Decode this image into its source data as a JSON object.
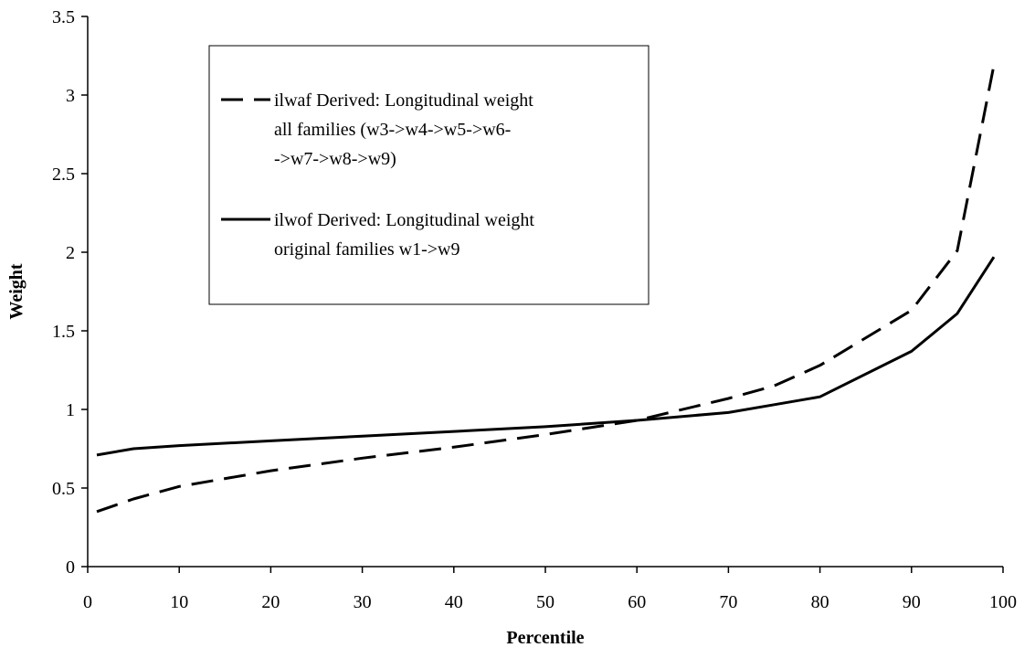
{
  "chart_data": {
    "type": "line",
    "xlabel": "Percentile",
    "ylabel": "Weight",
    "xlim": [
      0,
      100
    ],
    "ylim": [
      0,
      3.5
    ],
    "x_ticks": [
      0,
      10,
      20,
      30,
      40,
      50,
      60,
      70,
      80,
      90,
      100
    ],
    "y_ticks": [
      0,
      0.5,
      1,
      1.5,
      2,
      2.5,
      3,
      3.5
    ],
    "x_tick_labels": [
      "0",
      "10",
      "20",
      "30",
      "40",
      "50",
      "60",
      "70",
      "80",
      "90",
      "100"
    ],
    "y_tick_labels": [
      "0",
      "0.5",
      "1",
      "1.5",
      "2",
      "2.5",
      "3",
      "3.5"
    ],
    "grid": false,
    "legend_position": "top-left",
    "series": [
      {
        "name": "ilwaf  Derived: Longitudinal weight all families (w3->w4->w5->w6->w7->w8->w9)",
        "legend_lines": [
          "ilwaf  Derived: Longitudinal weight",
          "all families (w3->w4->w5->w6-",
          "->w7->w8->w9)"
        ],
        "style": "dashed",
        "color": "#000000",
        "x": [
          1,
          5,
          10,
          20,
          30,
          40,
          50,
          60,
          70,
          75,
          80,
          90,
          95,
          99
        ],
        "y": [
          0.35,
          0.43,
          0.51,
          0.61,
          0.69,
          0.76,
          0.84,
          0.93,
          1.07,
          1.15,
          1.28,
          1.63,
          2.01,
          3.19
        ]
      },
      {
        "name": "ilwof  Derived: Longitudinal weight original families w1->w9",
        "legend_lines": [
          "ilwof  Derived: Longitudinal weight",
          "original families w1->w9"
        ],
        "style": "solid",
        "color": "#000000",
        "x": [
          1,
          5,
          10,
          20,
          30,
          40,
          50,
          60,
          70,
          75,
          80,
          90,
          95,
          99
        ],
        "y": [
          0.71,
          0.75,
          0.77,
          0.8,
          0.83,
          0.86,
          0.89,
          0.93,
          0.98,
          1.03,
          1.08,
          1.37,
          1.61,
          1.97
        ]
      }
    ]
  }
}
